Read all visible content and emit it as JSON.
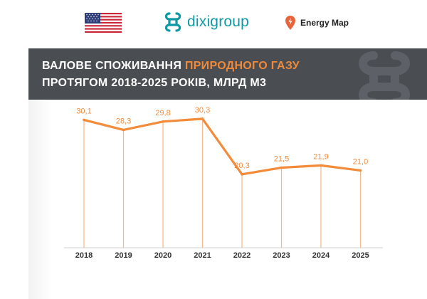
{
  "header": {
    "flag_icon": "us-flag-icon",
    "logo_icon": "dixigroup-logo-icon",
    "logo_text": "dixigroup",
    "logo_tagline": "",
    "energy_map_label": "Energy Map",
    "energy_map_icon": "map-pin-icon"
  },
  "title": {
    "line1_prefix": "ВАЛОВЕ СПОЖИВАННЯ ",
    "line1_accent": "ПРИРОДНОГО ГАЗУ",
    "line2": "ПРОТЯГОМ 2018-2025 РОКІВ, МЛРД М3"
  },
  "colors": {
    "accent": "#f08a3a",
    "title_bar": "#4a4d52",
    "line": "#f28c3b",
    "drop_line": "#f5b88a",
    "logo": "#0f9aa3"
  },
  "chart_data": {
    "type": "line",
    "categories": [
      "2018",
      "2019",
      "2020",
      "2021",
      "2022",
      "2023",
      "2024",
      "2025"
    ],
    "values": [
      30.1,
      28.3,
      29.8,
      30.3,
      20.3,
      21.5,
      21.9,
      21.0
    ],
    "data_labels": [
      "30,1",
      "28,3",
      "29,8",
      "30,3",
      "20,3",
      "21,5",
      "21,9",
      "21,0"
    ],
    "title": "ВАЛОВЕ СПОЖИВАННЯ ПРИРОДНОГО ГАЗУ ПРОТЯГОМ 2018-2025 РОКІВ, МЛРД М3",
    "xlabel": "",
    "ylabel": "",
    "ylim": [
      0,
      32
    ],
    "grid": false,
    "legend": "none"
  }
}
